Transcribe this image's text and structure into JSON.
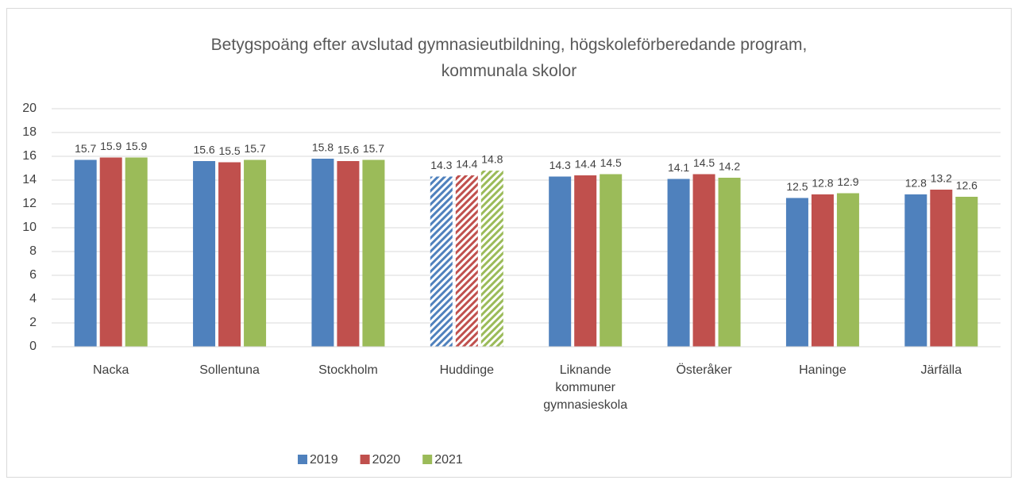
{
  "chart_data": {
    "type": "bar",
    "title": "Betygspoäng efter avslutad gymnasieutbildning, högskoleförberedande program, kommunala skolor",
    "categories": [
      "Nacka",
      "Sollentuna",
      "Stockholm",
      "Huddinge",
      "Liknande kommuner gymnasieskola",
      "Österåker",
      "Haninge",
      "Järfälla"
    ],
    "series": [
      {
        "name": "2019",
        "color": "#4f81bd",
        "values": [
          15.7,
          15.6,
          15.8,
          14.3,
          14.3,
          14.1,
          12.5,
          12.8
        ]
      },
      {
        "name": "2020",
        "color": "#c0504d",
        "values": [
          15.9,
          15.5,
          15.6,
          14.4,
          14.4,
          14.5,
          12.8,
          13.2
        ]
      },
      {
        "name": "2021",
        "color": "#9bbb59",
        "values": [
          15.9,
          15.7,
          15.7,
          14.8,
          14.5,
          14.2,
          12.9,
          12.6
        ]
      }
    ],
    "hatched": "Huddinge",
    "ylim": [
      0,
      20
    ],
    "yticks": [
      0,
      2,
      4,
      6,
      8,
      10,
      12,
      14,
      16,
      18,
      20
    ],
    "grid": true,
    "legend": "bottom"
  }
}
